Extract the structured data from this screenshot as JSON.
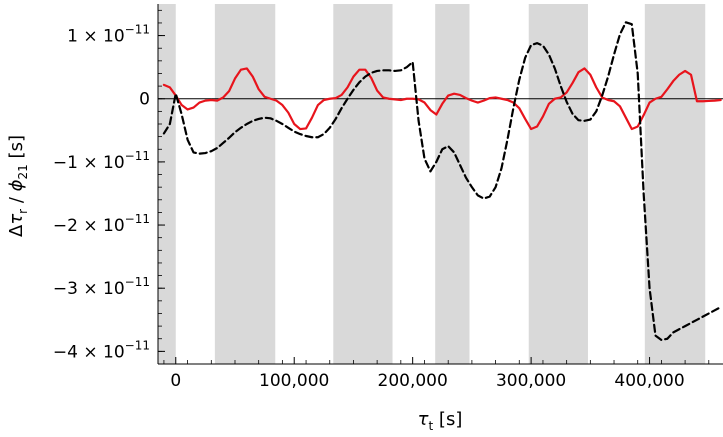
{
  "chart_data": {
    "type": "line",
    "title": "",
    "xlabel_symbol": "τ",
    "xlabel_sub": "t",
    "xlabel_unit": "[s]",
    "ylabel_delta": "Δ",
    "ylabel_tau": "τ",
    "ylabel_tau_sub": "r",
    "ylabel_slash": "/",
    "ylabel_phi": "ϕ",
    "ylabel_phi_sub": "21",
    "ylabel_unit": "[s]",
    "xlim": [
      -15000,
      462000
    ],
    "ylim": [
      -4.2e-11,
      1.5e-11
    ],
    "grid": false,
    "x_ticks": [
      {
        "value": 0,
        "label": "0"
      },
      {
        "value": 100000,
        "label": "100,000"
      },
      {
        "value": 200000,
        "label": "200,000"
      },
      {
        "value": 300000,
        "label": "300,000"
      },
      {
        "value": 400000,
        "label": "400,000"
      }
    ],
    "y_ticks": [
      {
        "value": 1e-11,
        "mant": "1 × 10",
        "exp": "−11"
      },
      {
        "value": 0,
        "mant": "0",
        "exp": ""
      },
      {
        "value": -1e-11,
        "mant": "−1 × 10",
        "exp": "−11"
      },
      {
        "value": -2e-11,
        "mant": "−2 × 10",
        "exp": "−11"
      },
      {
        "value": -3e-11,
        "mant": "−3 × 10",
        "exp": "−11"
      },
      {
        "value": -4e-11,
        "mant": "−4 × 10",
        "exp": "−11"
      }
    ],
    "shaded_bands": [
      [
        -15000,
        0
      ],
      [
        33000,
        84000
      ],
      [
        133000,
        183000
      ],
      [
        219000,
        248000
      ],
      [
        298000,
        348000
      ],
      [
        396000,
        447000
      ]
    ],
    "series": [
      {
        "style": "solid",
        "color": "#e8141c",
        "x": [
          -10000,
          -5000,
          0,
          5000,
          10000,
          15000,
          20000,
          25000,
          30000,
          35000,
          40000,
          45000,
          50000,
          55000,
          60000,
          65000,
          70000,
          75000,
          80000,
          85000,
          90000,
          95000,
          100000,
          105000,
          110000,
          115000,
          120000,
          125000,
          130000,
          135000,
          140000,
          145000,
          150000,
          155000,
          160000,
          165000,
          170000,
          175000,
          180000,
          185000,
          190000,
          195000,
          200000,
          205000,
          210000,
          215000,
          220000,
          225000,
          230000,
          235000,
          240000,
          245000,
          250000,
          255000,
          260000,
          265000,
          270000,
          275000,
          280000,
          285000,
          290000,
          295000,
          300000,
          305000,
          310000,
          315000,
          320000,
          325000,
          330000,
          335000,
          340000,
          345000,
          350000,
          355000,
          360000,
          365000,
          370000,
          375000,
          380000,
          385000,
          390000,
          395000,
          400000,
          405000,
          410000,
          415000,
          420000,
          425000,
          430000,
          435000,
          440000,
          445000,
          450000,
          455000,
          460000
        ],
        "y": [
          2.2e-12,
          1.8e-12,
          5e-13,
          -1e-12,
          -1.7e-12,
          -1.4e-12,
          -6e-13,
          -3e-13,
          -2e-13,
          -3e-13,
          2e-13,
          1.2e-12,
          3.2e-12,
          4.6e-12,
          4.8e-12,
          3.5e-12,
          1.5e-12,
          3e-13,
          0,
          -3e-13,
          -1e-12,
          -2.2e-12,
          -4e-12,
          -4.8e-12,
          -4.7e-12,
          -3e-12,
          -1e-12,
          -2e-13,
          0,
          1e-13,
          6e-13,
          1.8e-12,
          3.5e-12,
          4.6e-12,
          4.6e-12,
          3.3e-12,
          1.3e-12,
          2e-13,
          0,
          -1e-13,
          -2e-13,
          0,
          0,
          -1e-13,
          -6e-13,
          -1.8e-12,
          -2.5e-12,
          -8e-13,
          5e-13,
          8e-13,
          6e-13,
          1e-13,
          -3e-13,
          -6e-13,
          -3e-13,
          1e-13,
          2e-13,
          0,
          -2e-13,
          -6e-13,
          -1.5e-12,
          -3.2e-12,
          -4.8e-12,
          -4.4e-12,
          -2.8e-12,
          -8e-13,
          0,
          2e-13,
          1e-12,
          2.5e-12,
          4.2e-12,
          4.8e-12,
          3.8e-12,
          1.8e-12,
          2e-13,
          -2e-13,
          -4e-13,
          -1.2e-12,
          -3e-12,
          -4.8e-12,
          -4.4e-12,
          -2.6e-12,
          -6e-13,
          0,
          3e-13,
          1.5e-12,
          2.8e-12,
          3.8e-12,
          4.4e-12,
          3.8e-12,
          -4e-13,
          -4e-13,
          -3.5e-13,
          -3e-13,
          -2e-13
        ]
      },
      {
        "style": "dashed",
        "color": "#000000",
        "x": [
          -10000,
          -5000,
          0,
          5000,
          10000,
          15000,
          20000,
          25000,
          30000,
          35000,
          40000,
          45000,
          50000,
          55000,
          60000,
          65000,
          70000,
          75000,
          80000,
          85000,
          90000,
          95000,
          100000,
          105000,
          110000,
          115000,
          120000,
          125000,
          130000,
          135000,
          140000,
          145000,
          150000,
          155000,
          160000,
          165000,
          170000,
          175000,
          180000,
          185000,
          190000,
          195000,
          200000,
          205000,
          210000,
          215000,
          220000,
          225000,
          230000,
          235000,
          240000,
          245000,
          250000,
          255000,
          260000,
          265000,
          270000,
          275000,
          280000,
          285000,
          290000,
          295000,
          300000,
          305000,
          310000,
          315000,
          320000,
          325000,
          330000,
          335000,
          340000,
          345000,
          350000,
          355000,
          360000,
          365000,
          370000,
          375000,
          380000,
          385000,
          390000,
          395000,
          400000,
          405000,
          410000,
          415000,
          420000,
          425000,
          430000,
          435000,
          440000,
          445000,
          450000,
          455000,
          460000
        ],
        "y": [
          -5.5e-12,
          -4e-12,
          8e-13,
          -2.5e-12,
          -6.5e-12,
          -8.5e-12,
          -8.7e-12,
          -8.6e-12,
          -8.3e-12,
          -7.8e-12,
          -7e-12,
          -6.2e-12,
          -5.3e-12,
          -4.6e-12,
          -4e-12,
          -3.5e-12,
          -3.2e-12,
          -3e-12,
          -3.1e-12,
          -3.5e-12,
          -4e-12,
          -4.6e-12,
          -5.2e-12,
          -5.6e-12,
          -5.9e-12,
          -6.1e-12,
          -6.1e-12,
          -5.6e-12,
          -4.6e-12,
          -3.2e-12,
          -1.5e-12,
          0,
          1.4e-12,
          2.6e-12,
          3.5e-12,
          4.1e-12,
          4.4e-12,
          4.5e-12,
          4.5e-12,
          4.4e-12,
          4.5e-12,
          5e-12,
          5.8e-12,
          -3.5e-12,
          -9.5e-12,
          -1.15e-11,
          -1e-11,
          -8e-12,
          -7.5e-12,
          -8.5e-12,
          -1.05e-11,
          -1.25e-11,
          -1.4e-11,
          -1.53e-11,
          -1.58e-11,
          -1.55e-11,
          -1.4e-11,
          -1.1e-11,
          -6.5e-12,
          -1.5e-12,
          3e-12,
          6.5e-12,
          8.5e-12,
          8.8e-12,
          8.4e-12,
          7e-12,
          4.8e-12,
          2e-12,
          -5e-13,
          -2.4e-12,
          -3.4e-12,
          -3.5e-12,
          -3.3e-12,
          -2e-12,
          5e-13,
          3.5e-12,
          7e-12,
          1.02e-11,
          1.21e-11,
          1.18e-11,
          4e-12,
          -1.5e-11,
          -3e-11,
          -3.75e-11,
          -3.82e-11,
          -3.8e-11,
          -3.7e-11,
          -3.65e-11,
          -3.6e-11,
          -3.55e-11,
          -3.5e-11,
          -3.45e-11,
          -3.4e-11,
          -3.35e-11,
          -3.3e-11
        ]
      }
    ]
  }
}
